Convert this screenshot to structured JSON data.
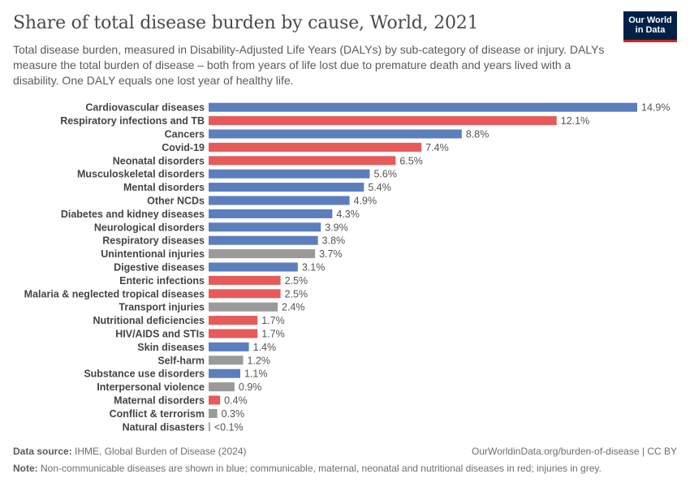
{
  "header": {
    "title": "Share of total disease burden by cause, World, 2021",
    "subtitle": "Total disease burden, measured in Disability-Adjusted Life Years (DALYs) by sub-category of disease or injury. DALYs measure the total burden of disease – both from years of life lost due to premature death and years lived with a disability. One DALY equals one lost year of healthy life.",
    "logo_line1": "Our World",
    "logo_line2": "in Data"
  },
  "footer": {
    "source_label": "Data source:",
    "source_text": "IHME, Global Burden of Disease (2024)",
    "url": "OurWorldinData.org/burden-of-disease | CC BY",
    "note_label": "Note:",
    "note_text": "Non-communicable diseases are shown in blue; communicable, maternal, neonatal and nutritional diseases in red; injuries in grey."
  },
  "colors": {
    "ncd": "#5b7fbd",
    "communicable": "#e75a5a",
    "injury": "#9a9a9a"
  },
  "chart_data": {
    "type": "bar",
    "orientation": "horizontal",
    "unit": "%",
    "xlim": [
      0,
      14.9
    ],
    "categories": [
      "Cardiovascular diseases",
      "Respiratory infections and TB",
      "Cancers",
      "Covid-19",
      "Neonatal disorders",
      "Musculoskeletal disorders",
      "Mental disorders",
      "Other NCDs",
      "Diabetes and kidney diseases",
      "Neurological disorders",
      "Respiratory diseases",
      "Unintentional injuries",
      "Digestive diseases",
      "Enteric infections",
      "Malaria & neglected tropical diseases",
      "Transport injuries",
      "Nutritional deficiencies",
      "HIV/AIDS and STIs",
      "Skin diseases",
      "Self-harm",
      "Substance use disorders",
      "Interpersonal violence",
      "Maternal disorders",
      "Conflict & terrorism",
      "Natural disasters"
    ],
    "values": [
      14.9,
      12.1,
      8.8,
      7.4,
      6.5,
      5.6,
      5.4,
      4.9,
      4.3,
      3.9,
      3.8,
      3.7,
      3.1,
      2.5,
      2.5,
      2.4,
      1.7,
      1.7,
      1.4,
      1.2,
      1.1,
      0.9,
      0.4,
      0.3,
      0.05
    ],
    "labels": [
      "14.9%",
      "12.1%",
      "8.8%",
      "7.4%",
      "6.5%",
      "5.6%",
      "5.4%",
      "4.9%",
      "4.3%",
      "3.9%",
      "3.8%",
      "3.7%",
      "3.1%",
      "2.5%",
      "2.5%",
      "2.4%",
      "1.7%",
      "1.7%",
      "1.4%",
      "1.2%",
      "1.1%",
      "0.9%",
      "0.4%",
      "0.3%",
      "<0.1%"
    ],
    "groups": [
      "ncd",
      "communicable",
      "ncd",
      "communicable",
      "communicable",
      "ncd",
      "ncd",
      "ncd",
      "ncd",
      "ncd",
      "ncd",
      "injury",
      "ncd",
      "communicable",
      "communicable",
      "injury",
      "communicable",
      "communicable",
      "ncd",
      "injury",
      "ncd",
      "injury",
      "communicable",
      "injury",
      "injury"
    ]
  }
}
